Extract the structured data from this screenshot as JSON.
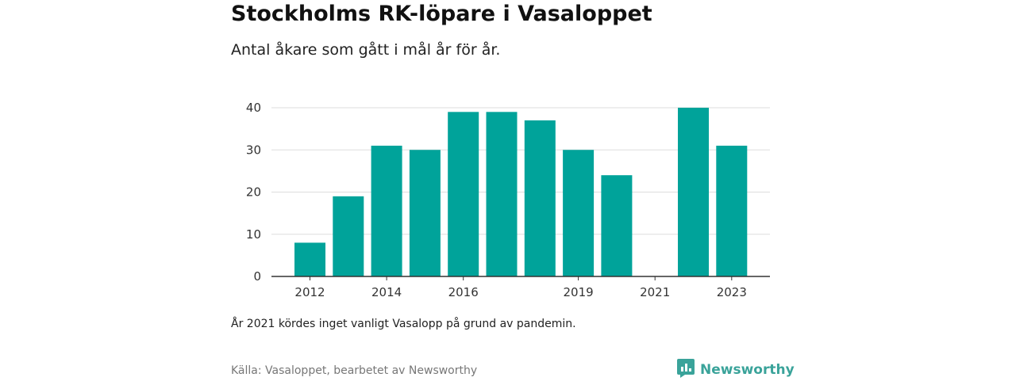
{
  "header": {
    "title": "Stockholms RK-löpare i Vasaloppet",
    "subtitle": "Antal åkare som gått i mål år för år."
  },
  "footer": {
    "note": "År 2021 kördes inget vanligt Vasalopp på grund av pandemin.",
    "source": "Källa: Vasaloppet, bearbetet av Newsworthy",
    "brand": "Newsworthy",
    "brand_icon": "newsworthy-logo-icon"
  },
  "colors": {
    "bar": "#00a39a",
    "grid": "#dddddd",
    "axis": "#333333",
    "brand": "#3aa39a"
  },
  "chart_data": {
    "type": "bar",
    "categories": [
      2012,
      2013,
      2014,
      2015,
      2016,
      2017,
      2018,
      2019,
      2020,
      2021,
      2022,
      2023
    ],
    "values": [
      8,
      19,
      31,
      30,
      39,
      39,
      37,
      30,
      24,
      0,
      40,
      31
    ],
    "x_tick_labels": [
      "2012",
      "2014",
      "2016",
      "2019",
      "2021",
      "2023"
    ],
    "y_ticks": [
      0,
      10,
      20,
      30,
      40
    ],
    "ylim": [
      0,
      40
    ],
    "title": "Stockholms RK-löpare i Vasaloppet",
    "subtitle": "Antal åkare som gått i mål år för år.",
    "xlabel": "",
    "ylabel": "",
    "grid": true,
    "legend": "none"
  }
}
